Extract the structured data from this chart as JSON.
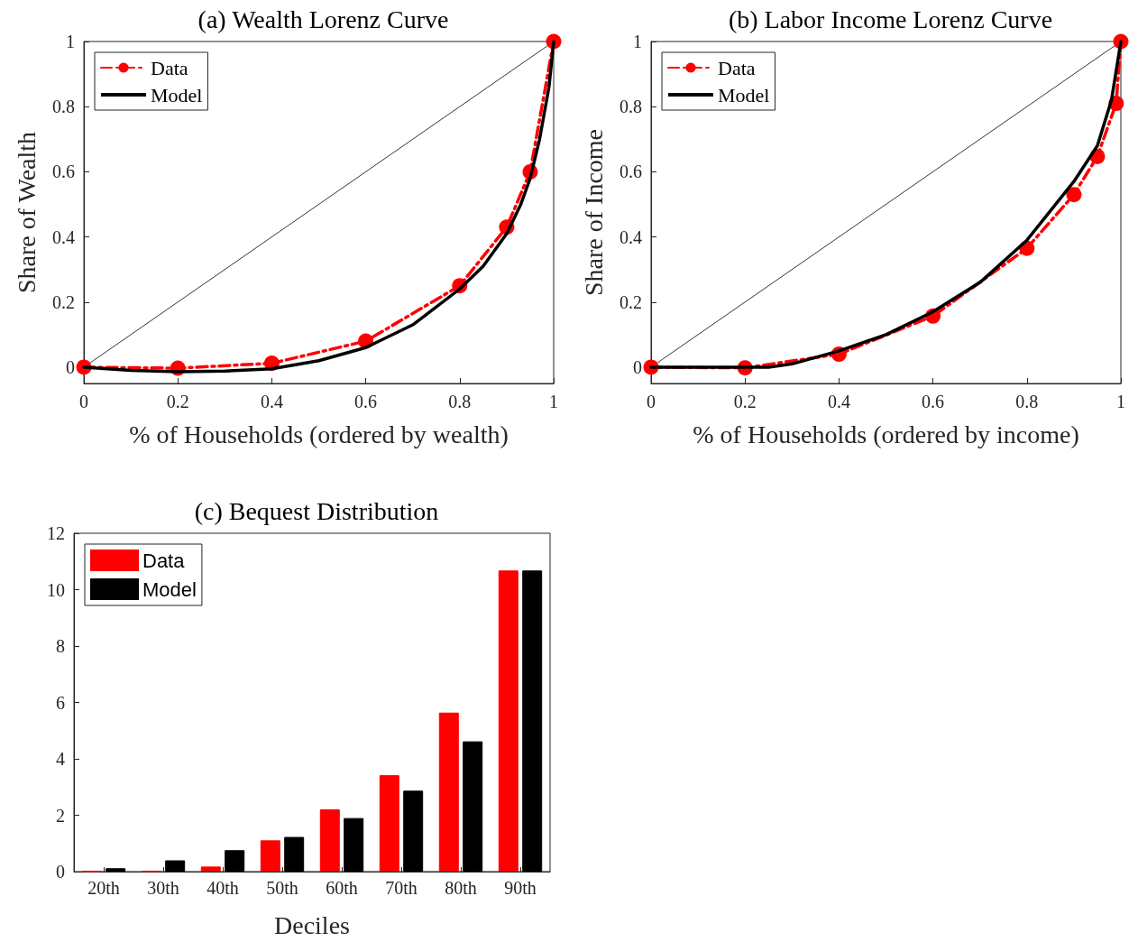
{
  "chart_data": [
    {
      "type": "line",
      "title": "(a) Wealth Lorenz Curve",
      "xlabel": "% of Households (ordered by wealth)",
      "ylabel": "Share of Wealth",
      "xlim": [
        0,
        1
      ],
      "ylim": [
        -0.05,
        1
      ],
      "xticks": [
        0,
        0.2,
        0.4,
        0.6,
        0.8,
        1
      ],
      "yticks": [
        0,
        0.2,
        0.4,
        0.6,
        0.8,
        1
      ],
      "grid": false,
      "legend": "top left",
      "series": [
        {
          "x": [
            0,
            1
          ],
          "values": [
            0,
            1
          ],
          "color": "#000000",
          "marker": "none",
          "line_style": "solid"
        },
        {
          "name": "Data",
          "x": [
            0,
            0.2,
            0.4,
            0.6,
            0.8,
            0.9,
            0.95,
            1
          ],
          "values": [
            0,
            -0.003,
            0.012,
            0.08,
            0.25,
            0.43,
            0.6,
            1
          ],
          "color": "#ff0000",
          "marker": "circle",
          "line_style": "dashed"
        },
        {
          "name": "Model",
          "x": [
            0,
            0.1,
            0.2,
            0.3,
            0.4,
            0.5,
            0.6,
            0.7,
            0.8,
            0.85,
            0.9,
            0.93,
            0.95,
            0.97,
            0.99,
            1
          ],
          "values": [
            0,
            -0.01,
            -0.014,
            -0.012,
            -0.005,
            0.02,
            0.06,
            0.13,
            0.24,
            0.31,
            0.41,
            0.5,
            0.58,
            0.7,
            0.86,
            1
          ],
          "color": "#000000",
          "marker": "none",
          "line_style": "solid"
        }
      ]
    },
    {
      "type": "line",
      "title": "(b) Labor Income Lorenz Curve",
      "xlabel": "% of Households (ordered by income)",
      "ylabel": "Share of Income",
      "xlim": [
        0,
        1
      ],
      "ylim": [
        -0.05,
        1
      ],
      "xticks": [
        0,
        0.2,
        0.4,
        0.6,
        0.8,
        1
      ],
      "yticks": [
        0,
        0.2,
        0.4,
        0.6,
        0.8,
        1
      ],
      "grid": false,
      "legend": "top left",
      "series": [
        {
          "x": [
            0,
            1
          ],
          "values": [
            0,
            1
          ],
          "color": "#000000",
          "marker": "none",
          "line_style": "solid"
        },
        {
          "name": "Data",
          "x": [
            0,
            0.2,
            0.4,
            0.6,
            0.8,
            0.9,
            0.95,
            0.99,
            1
          ],
          "values": [
            0,
            -0.002,
            0.04,
            0.157,
            0.365,
            0.53,
            0.647,
            0.81,
            1
          ],
          "color": "#ff0000",
          "marker": "circle",
          "line_style": "dashed"
        },
        {
          "name": "Model",
          "x": [
            0,
            0.25,
            0.3,
            0.4,
            0.5,
            0.6,
            0.7,
            0.8,
            0.9,
            0.95,
            0.98,
            1
          ],
          "values": [
            0,
            0,
            0.01,
            0.05,
            0.1,
            0.17,
            0.26,
            0.39,
            0.57,
            0.68,
            0.82,
            1
          ],
          "color": "#000000",
          "marker": "none",
          "line_style": "solid"
        }
      ]
    },
    {
      "type": "bar",
      "title": "(c) Bequest Distribution",
      "xlabel": "Deciles",
      "categories": [
        "20th",
        "30th",
        "40th",
        "50th",
        "60th",
        "70th",
        "80th",
        "90th"
      ],
      "ylim": [
        0,
        12
      ],
      "yticks": [
        0,
        2,
        4,
        6,
        8,
        10,
        12
      ],
      "grid": false,
      "legend": "top left",
      "series": [
        {
          "name": "Data",
          "color": "#ff0000",
          "values": [
            0.01,
            0.02,
            0.18,
            1.11,
            2.21,
            3.42,
            5.64,
            10.68
          ]
        },
        {
          "name": "Model",
          "color": "#000000",
          "values": [
            0.12,
            0.4,
            0.76,
            1.23,
            1.9,
            2.87,
            4.62,
            10.68
          ]
        }
      ]
    }
  ]
}
